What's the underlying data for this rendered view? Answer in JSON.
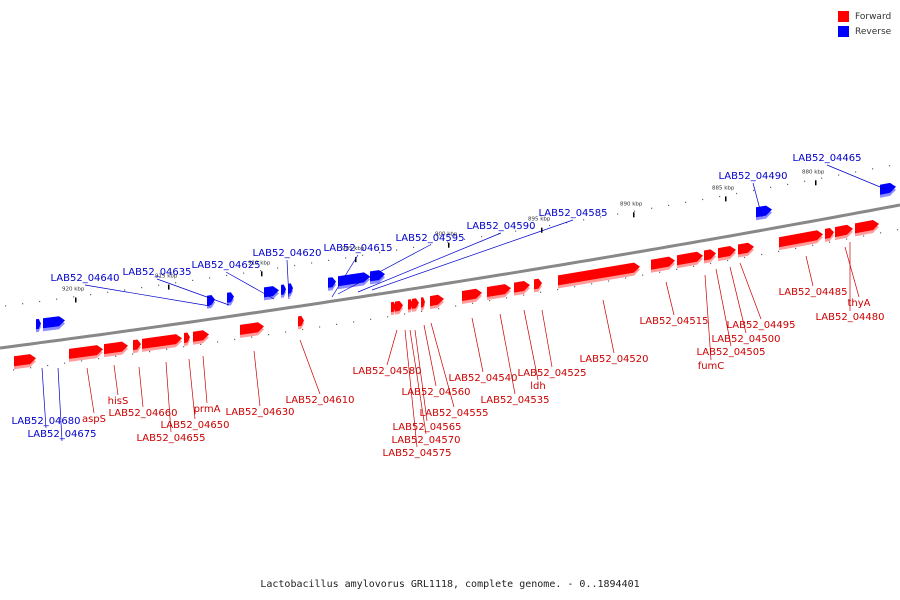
{
  "legend": {
    "forward_label": "Forward",
    "reverse_label": "Reverse",
    "forward_color": "#ff0000",
    "reverse_color": "#0000ff"
  },
  "caption": "Lactobacillus amylovorus GRL1118, complete genome. - 0..1894401",
  "colors": {
    "forward": "#ff0000",
    "reverse": "#0000ff",
    "backbone": "#888888",
    "leader_forward": "#cc0000",
    "leader_reverse": "#0000cc"
  },
  "ticks": [
    "920 kbp",
    "915 kbp",
    "910 kbp",
    "905 kbp",
    "900 kbp",
    "895 kbp",
    "890 kbp",
    "885 kbp",
    "880 kbp"
  ],
  "reverse_genes": [
    "LAB52_04465",
    "LAB52_04490",
    "LAB52_04585",
    "LAB52_04590",
    "LAB52_04595",
    "LAB52_04615",
    "LAB52_04620",
    "LAB52_04625",
    "LAB52_04635",
    "LAB52_04640",
    "LAB52_04680",
    "LAB52_04675"
  ],
  "forward_genes": [
    "LAB52_04485",
    "thyA",
    "LAB52_04480",
    "LAB52_04495",
    "LAB52_04500",
    "LAB52_04505",
    "fumC",
    "LAB52_04515",
    "LAB52_04520",
    "LAB52_04525",
    "ldh",
    "LAB52_04535",
    "LAB52_04540",
    "LAB52_04555",
    "LAB52_04560",
    "LAB52_04565",
    "LAB52_04570",
    "LAB52_04575",
    "LAB52_04580",
    "LAB52_04610",
    "LAB52_04630",
    "prmA",
    "LAB52_04650",
    "LAB52_04655",
    "LAB52_04660",
    "hisS",
    "aspS"
  ]
}
